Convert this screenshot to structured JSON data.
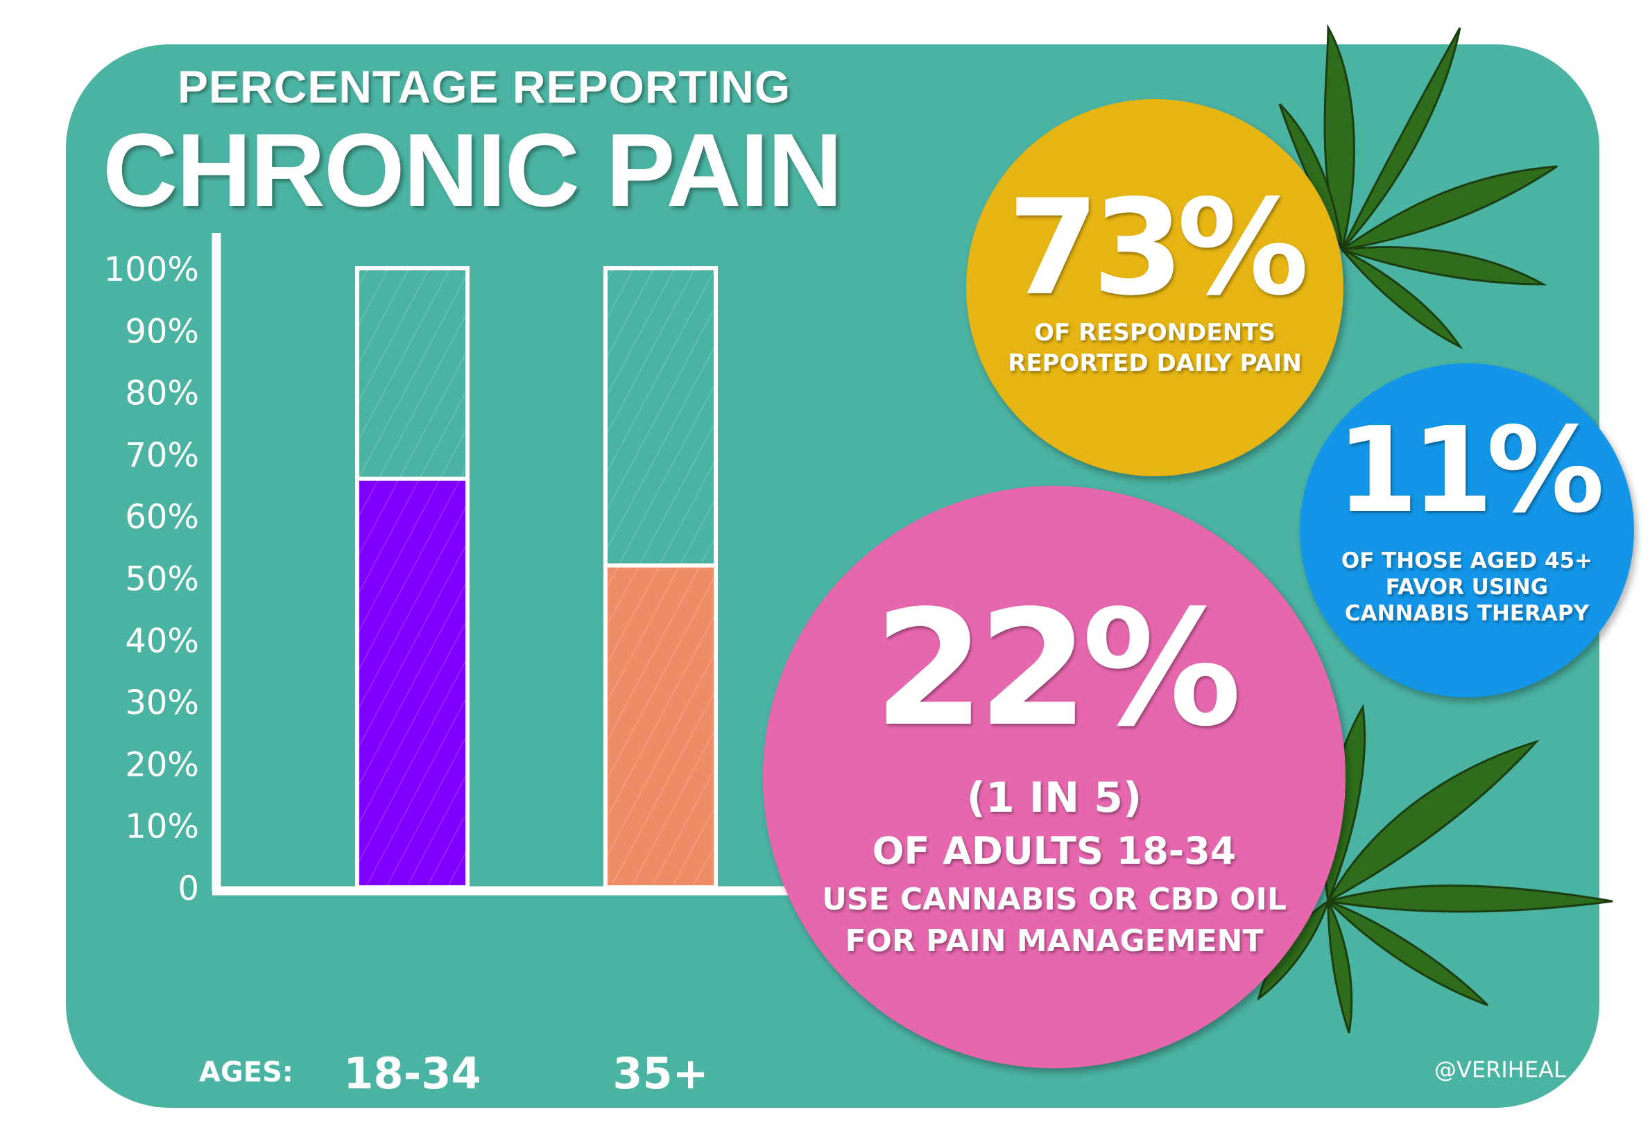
{
  "title": {
    "line1": "PERCENTAGE REPORTING",
    "line2": "CHRONIC PAIN"
  },
  "chart_data": {
    "type": "bar",
    "title": "PERCENTAGE REPORTING CHRONIC PAIN",
    "xlabel": "AGES:",
    "ylabel": "",
    "categories": [
      "18-34",
      "35+"
    ],
    "values": [
      66,
      52
    ],
    "ylim": [
      0,
      100
    ],
    "yticks": [
      "0",
      "10%",
      "20%",
      "30%",
      "40%",
      "50%",
      "60%",
      "70%",
      "80%",
      "90%",
      "100%"
    ],
    "colors": [
      "#7f00ff",
      "#ee8c67"
    ],
    "grid": false
  },
  "stats": {
    "yellow": {
      "value": "73%",
      "line1": "OF RESPONDENTS",
      "line2": "REPORTED DAILY PAIN",
      "color": "#e6b513"
    },
    "blue": {
      "value": "11%",
      "line1": "OF THOSE AGED 45+",
      "line2": "FAVOR USING",
      "line3": "CANNABIS THERAPY",
      "color": "#1396e8"
    },
    "pink": {
      "value": "22%",
      "sub": "(1 IN 5)",
      "line1": "OF ADULTS 18-34",
      "line2": "USE CANNABIS OR CBD OIL",
      "line3": "FOR PAIN MANAGEMENT",
      "color": "#e667ae"
    }
  },
  "handle": "@VERIHEAL"
}
